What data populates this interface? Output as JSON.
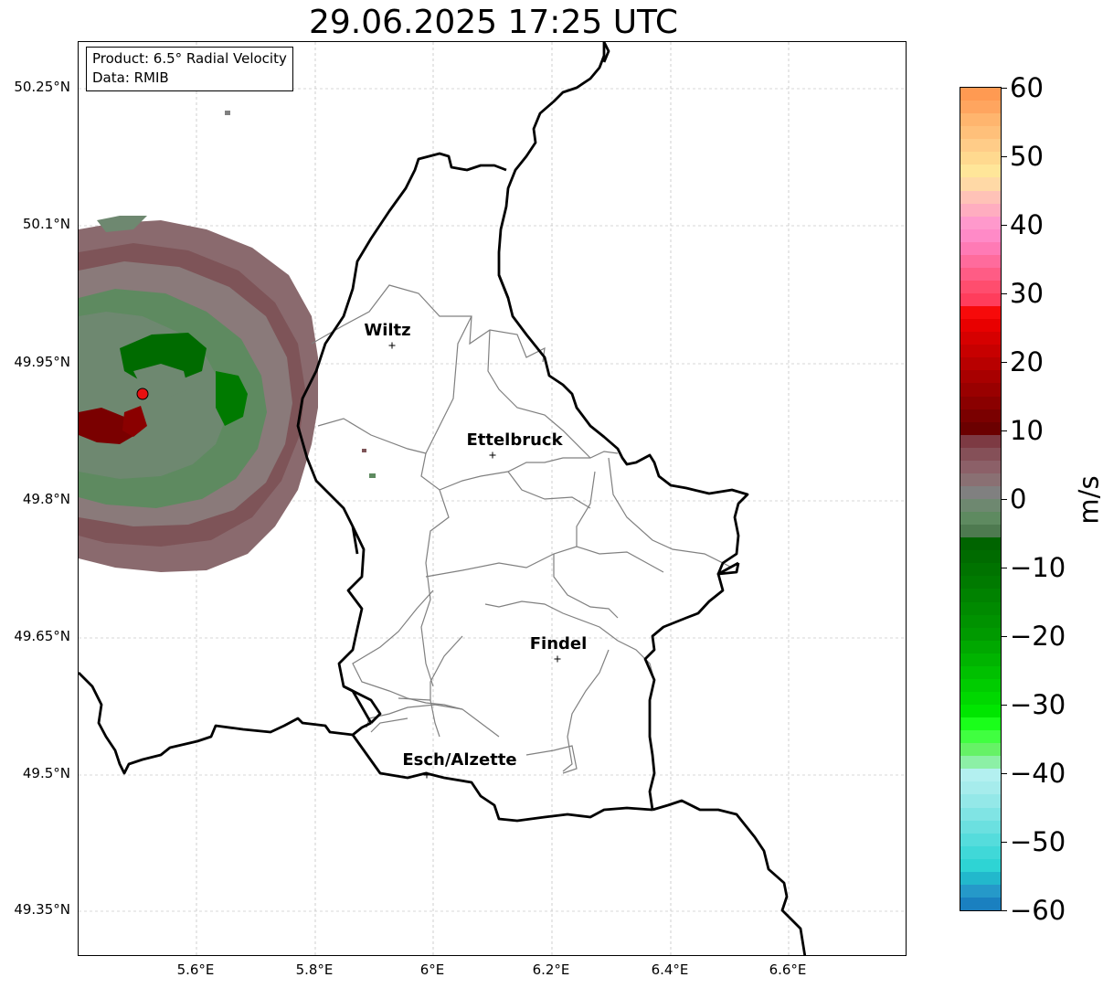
{
  "title": "29.06.2025 17:25 UTC",
  "info": {
    "product": "Product: 6.5° Radial Velocity",
    "data": "Data: RMIB"
  },
  "axes": {
    "lon_labels": [
      "5.6°E",
      "5.8°E",
      "6°E",
      "6.2°E",
      "6.4°E",
      "6.6°E"
    ],
    "lat_labels": [
      "50.25°N",
      "50.1°N",
      "49.95°N",
      "49.8°N",
      "49.65°N",
      "49.5°N",
      "49.35°N"
    ]
  },
  "cities": [
    {
      "name": "Wiltz"
    },
    {
      "name": "Ettelbruck"
    },
    {
      "name": "Findel"
    },
    {
      "name": "Esch/Alzette"
    }
  ],
  "colorbar": {
    "unit": "m/s",
    "min": -60,
    "max": 60,
    "tick_labels": [
      "60",
      "50",
      "40",
      "30",
      "20",
      "10",
      "0",
      "−10",
      "−20",
      "−30",
      "−40",
      "−50",
      "−60"
    ],
    "colors_top_to_bottom": [
      "#ff9a52",
      "#ffa55f",
      "#ffb56e",
      "#ffc07a",
      "#ffcc88",
      "#ffd98f",
      "#ffe699",
      "#ffd9a6",
      "#ffc2b7",
      "#ffadc0",
      "#ff99cc",
      "#ff8ac7",
      "#ff7ab5",
      "#ff6b9c",
      "#ff5c85",
      "#ff4d6e",
      "#ff3d5c",
      "#f70a0a",
      "#e80000",
      "#d60000",
      "#c70000",
      "#b80000",
      "#a80000",
      "#990000",
      "#8a0000",
      "#7a0000",
      "#6b0000",
      "#7d3a43",
      "#855058",
      "#8c6068",
      "#8a7073",
      "#808080",
      "#6e8870",
      "#5e8a60",
      "#4e7a50",
      "#006400",
      "#006b00",
      "#007300",
      "#007a00",
      "#008200",
      "#008a00",
      "#009200",
      "#009a00",
      "#00a800",
      "#00b400",
      "#00c000",
      "#00cc00",
      "#00d800",
      "#00e600",
      "#1aff1a",
      "#40ff40",
      "#66f266",
      "#8cf0a6",
      "#b3f0f0",
      "#a6ecec",
      "#94e8e8",
      "#80e4e4",
      "#6be0e0",
      "#55dcdc",
      "#40d8d8",
      "#2ed4d4",
      "#22b8cc",
      "#2599c9",
      "#1a80c0"
    ]
  },
  "radar": {
    "site": "radar-site",
    "site_color": "#e81010"
  }
}
